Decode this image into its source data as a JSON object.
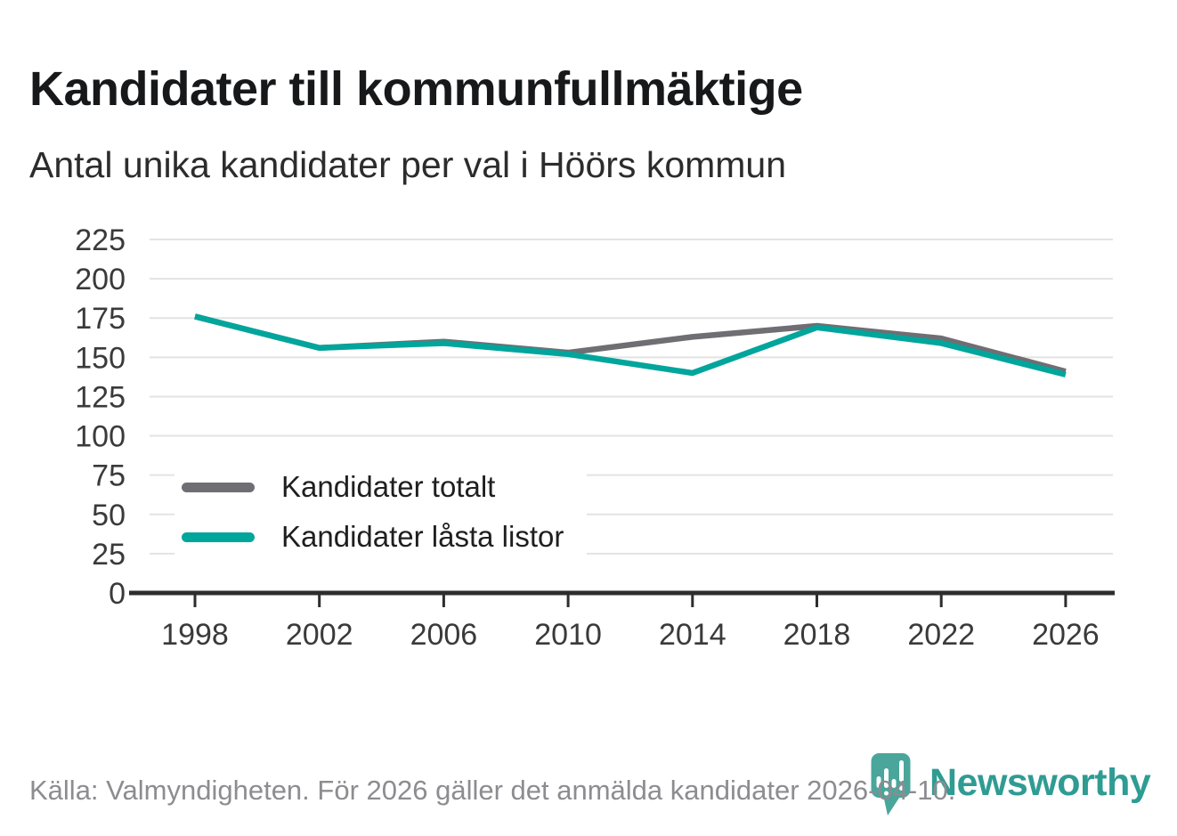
{
  "title": "Kandidater till kommunfullmäktige",
  "subtitle": "Antal unika kandidater per val i Höörs kommun",
  "chart_data": {
    "type": "line",
    "x": [
      1998,
      2002,
      2006,
      2010,
      2014,
      2018,
      2022,
      2026
    ],
    "series": [
      {
        "name": "Kandidater totalt",
        "color": "#6f6e73",
        "values": [
          176,
          156,
          160,
          153,
          163,
          170,
          162,
          141
        ]
      },
      {
        "name": "Kandidater låsta listor",
        "color": "#00a59c",
        "values": [
          176,
          156,
          159,
          152,
          140,
          169,
          159,
          139
        ]
      }
    ],
    "ylim": [
      0,
      225
    ],
    "yticks": [
      0,
      25,
      50,
      75,
      100,
      125,
      150,
      175,
      200,
      225
    ],
    "grid": true,
    "legend_position": "inside-bottom-left",
    "xlabel": "",
    "ylabel": ""
  },
  "footer": {
    "source_text": "Källa: Valmyndigheten. För 2026 gäller det anmälda kandidater 2026-04-10."
  },
  "branding": {
    "logo_text": "Newsworthy",
    "logo_icon": "newsworthy-pin-barchart-icon",
    "wordmark_color": "#2f9c93",
    "pin_color": "#4aa69b"
  },
  "colors": {
    "gridline": "#e3e3e3",
    "axis": "#2d2d2d",
    "tick_label": "#3a3a3a",
    "title_text": "#17181a",
    "footer_text": "#8c8c91"
  }
}
